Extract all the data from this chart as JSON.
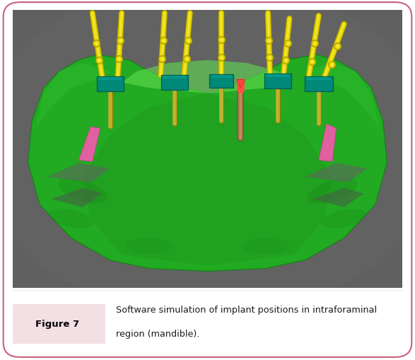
{
  "figure_label": "Figure 7",
  "caption_line1": "Software simulation of implant positions in intraforaminal",
  "caption_line2": "region (mandible).",
  "bg_color": "#ffffff",
  "border_color": "#c8607a",
  "label_bg_color": "#f2e0e5",
  "label_text_color": "#000000",
  "caption_text_color": "#1a1a1a",
  "image_bg_color": "#606060",
  "implant_yellow": "#e8d800",
  "implant_yellow_dark": "#b0a000",
  "teal_color": "#008878",
  "teal_dark": "#006055",
  "mandible_green": "#22aa22",
  "mandible_dark": "#158015",
  "mandible_light": "#55cc44",
  "brown_implant": "#9b7a55",
  "pink_marker": "#e060a0",
  "red_marker": "#ff4040",
  "gray_shadow": "#5a6a5a",
  "fig_width": 5.87,
  "fig_height": 5.1,
  "dpi": 100
}
